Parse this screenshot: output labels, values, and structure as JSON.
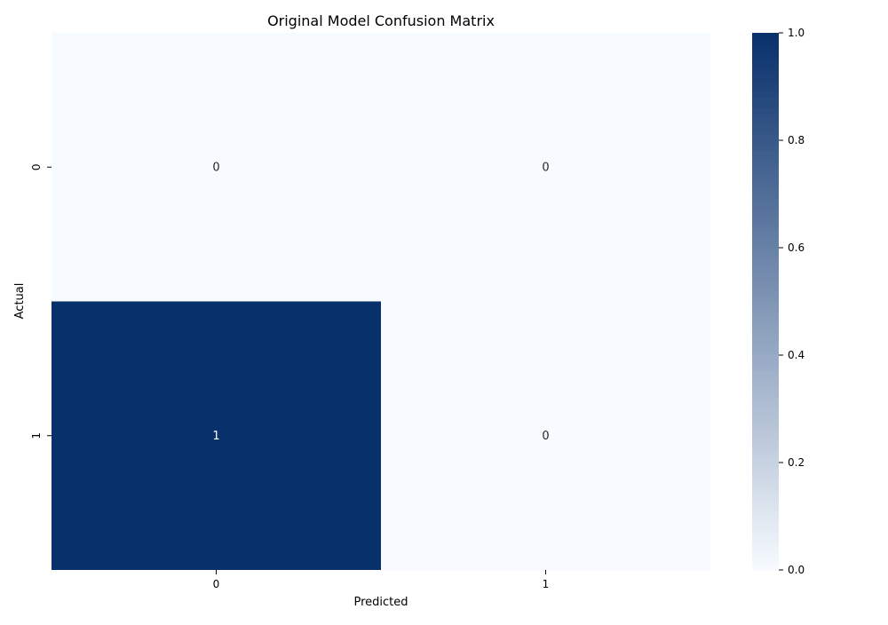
{
  "chart_data": {
    "type": "heatmap",
    "title": "Original Model Confusion Matrix",
    "xlabel": "Predicted",
    "ylabel": "Actual",
    "x_categories": [
      "0",
      "1"
    ],
    "y_categories": [
      "0",
      "1"
    ],
    "values": [
      [
        0,
        0
      ],
      [
        1,
        0
      ]
    ],
    "annotations": [
      [
        "0",
        "0"
      ],
      [
        "1",
        "0"
      ]
    ],
    "colormap": "Blues",
    "colormap_low": "#f7fbff",
    "colormap_high": "#08306b",
    "annotation_color_light": "#262626",
    "annotation_color_dark": "#ffffff",
    "color_range": [
      0.0,
      1.0
    ],
    "colorbar_ticks": [
      "0.0",
      "0.2",
      "0.4",
      "0.6",
      "0.8",
      "1.0"
    ],
    "grid": false
  }
}
